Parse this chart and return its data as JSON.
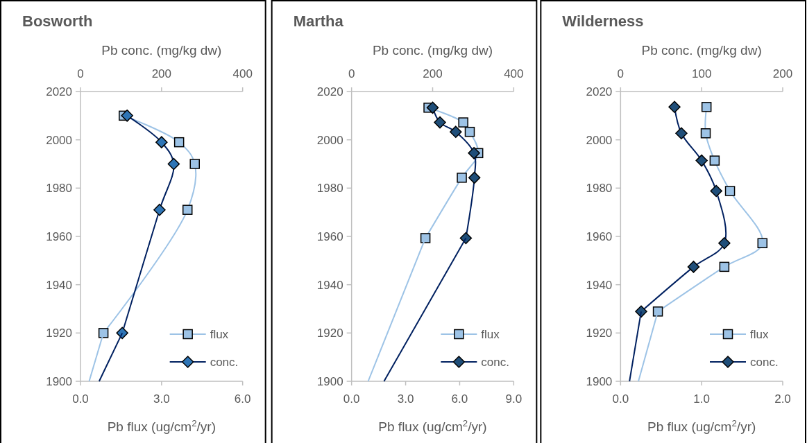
{
  "chart_data": [
    {
      "type": "line",
      "title": "Bosworth",
      "xlabel": "Pb flux (ug/cm$^{2}$/yr)",
      "x2label": "Pb conc. (mg/kg dw)",
      "xlim": [
        0,
        6
      ],
      "xticks": [
        {
          "value": 0,
          "label": "0.0"
        },
        {
          "value": 3,
          "label": "3.0"
        },
        {
          "value": 6,
          "label": "6.0"
        }
      ],
      "x2lim": [
        0,
        400
      ],
      "x2ticks": [
        0,
        200,
        400
      ],
      "ylim": [
        1900,
        2020
      ],
      "yticks": [
        1900,
        1920,
        1940,
        1960,
        1980,
        2000,
        2020
      ],
      "grid": false,
      "legend": "bottom right",
      "series": [
        {
          "name": "flux",
          "color": "#9dc3e6",
          "marker": "square",
          "x": [
            1.6,
            3.65,
            4.23,
            3.96,
            0.85
          ],
          "values": [
            2010,
            1999,
            1990,
            1971,
            1920
          ]
        },
        {
          "name": "conc.",
          "color": "#2e75b6",
          "marker": "diamond",
          "axis": "x2",
          "x": [
            115,
            200,
            230,
            195,
            103
          ],
          "values": [
            2010,
            1999,
            1990,
            1971,
            1920
          ]
        },
        {
          "color": "#9dc3e6",
          "marker": "none",
          "x": [
            0.85,
            0.32
          ],
          "values": [
            1920,
            1900
          ]
        },
        {
          "color": "#002060",
          "marker": "none",
          "axis": "x2",
          "x": [
            103,
            46
          ],
          "values": [
            1920,
            1900
          ]
        }
      ]
    },
    {
      "type": "line",
      "title": "Martha",
      "xlabel": "Pb flux (ug/cm$^{2}$/yr)",
      "x2label": "Pb conc. (mg/kg dw)",
      "xlim": [
        0,
        9
      ],
      "xticks": [
        {
          "value": 0,
          "label": "0.0"
        },
        {
          "value": 3,
          "label": "3.0"
        },
        {
          "value": 6,
          "label": "6.0"
        },
        {
          "value": 9,
          "label": "9.0"
        }
      ],
      "x2lim": [
        0,
        400
      ],
      "x2ticks": [
        0,
        200,
        400
      ],
      "ylim": [
        1900,
        2020
      ],
      "yticks": [
        1900,
        1920,
        1940,
        1960,
        1980,
        2000,
        2020
      ],
      "grid": false,
      "legend": "bottom right",
      "series": [
        {
          "name": "flux",
          "color": "#9dc3e6",
          "marker": "square",
          "x": [
            4.27,
            6.2,
            6.56,
            7.03,
            6.12,
            4.1
          ],
          "values": [
            2013.3,
            2007.2,
            2003.3,
            1994.5,
            1984.3,
            1959.3
          ]
        },
        {
          "name": "conc.",
          "color": "#1f4e79",
          "marker": "diamond",
          "axis": "x2",
          "x": [
            200,
            218,
            257,
            302,
            303,
            282
          ],
          "values": [
            2013.3,
            2007.2,
            2003.3,
            1994.5,
            1984.3,
            1959.3
          ]
        },
        {
          "color": "#9dc3e6",
          "marker": "none",
          "x": [
            4.1,
            0.92
          ],
          "values": [
            1959.3,
            1900
          ]
        },
        {
          "color": "#002060",
          "marker": "none",
          "axis": "x2",
          "x": [
            282,
            80
          ],
          "values": [
            1959.3,
            1900
          ]
        }
      ]
    },
    {
      "type": "line",
      "title": "Wilderness",
      "xlabel": "Pb flux (ug/cm$^{2}$/yr)",
      "x2label": "Pb conc. (mg/kg dw)",
      "xlim": [
        0,
        2
      ],
      "xticks": [
        {
          "value": 0,
          "label": "0.0"
        },
        {
          "value": 1,
          "label": "1.0"
        },
        {
          "value": 2,
          "label": "2.0"
        }
      ],
      "x2lim": [
        0,
        200
      ],
      "x2ticks": [
        0,
        100,
        200
      ],
      "ylim": [
        1900,
        2020
      ],
      "yticks": [
        1900,
        1920,
        1940,
        1960,
        1980,
        2000,
        2020
      ],
      "grid": false,
      "legend": "bottom right",
      "series": [
        {
          "name": "flux",
          "color": "#9dc3e6",
          "marker": "square",
          "x": [
            1.06,
            1.05,
            1.16,
            1.35,
            1.75,
            1.28,
            0.46
          ],
          "values": [
            2013.6,
            2002.7,
            1991.4,
            1978.8,
            1957.2,
            1947.4,
            1928.9
          ]
        },
        {
          "name": "conc.",
          "color": "#1f4e79",
          "marker": "diamond",
          "axis": "x2",
          "x": [
            66.5,
            75,
            100,
            118,
            128,
            90,
            25.4
          ],
          "values": [
            2013.6,
            2002.7,
            1991.4,
            1978.8,
            1957.2,
            1947.4,
            1928.9
          ]
        },
        {
          "color": "#9dc3e6",
          "marker": "none",
          "x": [
            0.46,
            0.22
          ],
          "values": [
            1928.9,
            1900
          ]
        },
        {
          "color": "#002060",
          "marker": "none",
          "axis": "x2",
          "x": [
            25.4,
            11
          ],
          "values": [
            1928.9,
            1900
          ]
        }
      ]
    }
  ]
}
